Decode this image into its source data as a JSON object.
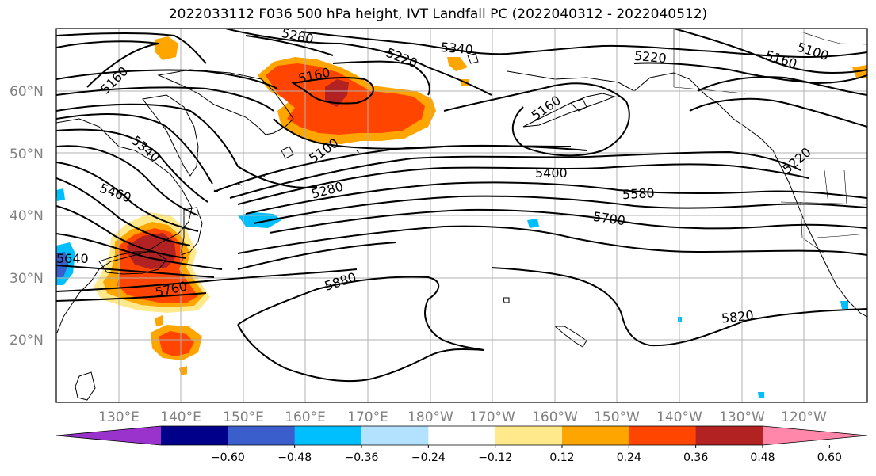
{
  "title": "2022033112 F036 500 hPa height, IVT Landfall PC (2022040312 - 2022040512)",
  "lat_labels": [
    "60°N",
    "50°N",
    "40°N",
    "30°N",
    "20°N"
  ],
  "lon_labels": [
    "130°E",
    "140°E",
    "150°E",
    "160°E",
    "170°E",
    "180°W",
    "170°W",
    "160°W",
    "150°W",
    "140°W",
    "130°W",
    "120°W"
  ],
  "height_contour_labels": [
    "5160",
    "5280",
    "5340",
    "5220",
    "5160",
    "5220",
    "5160",
    "5100",
    "5340",
    "5460",
    "5160",
    "5100",
    "5280",
    "5400",
    "5580",
    "5700",
    "5880",
    "5760",
    "5820",
    "5220",
    "5640"
  ],
  "colorbar": {
    "ticks": [
      "−0.60",
      "−0.48",
      "−0.36",
      "−0.24",
      "−0.12",
      "0.12",
      "0.24",
      "0.36",
      "0.48",
      "0.60"
    ],
    "colors": [
      "#9933cc",
      "#00008b",
      "#3a5fcd",
      "#00bfff",
      "#b2e2ff",
      "#ffffff",
      "#ffe98a",
      "#ffa500",
      "#ff4500",
      "#b22222",
      "#ff88aa"
    ]
  }
}
